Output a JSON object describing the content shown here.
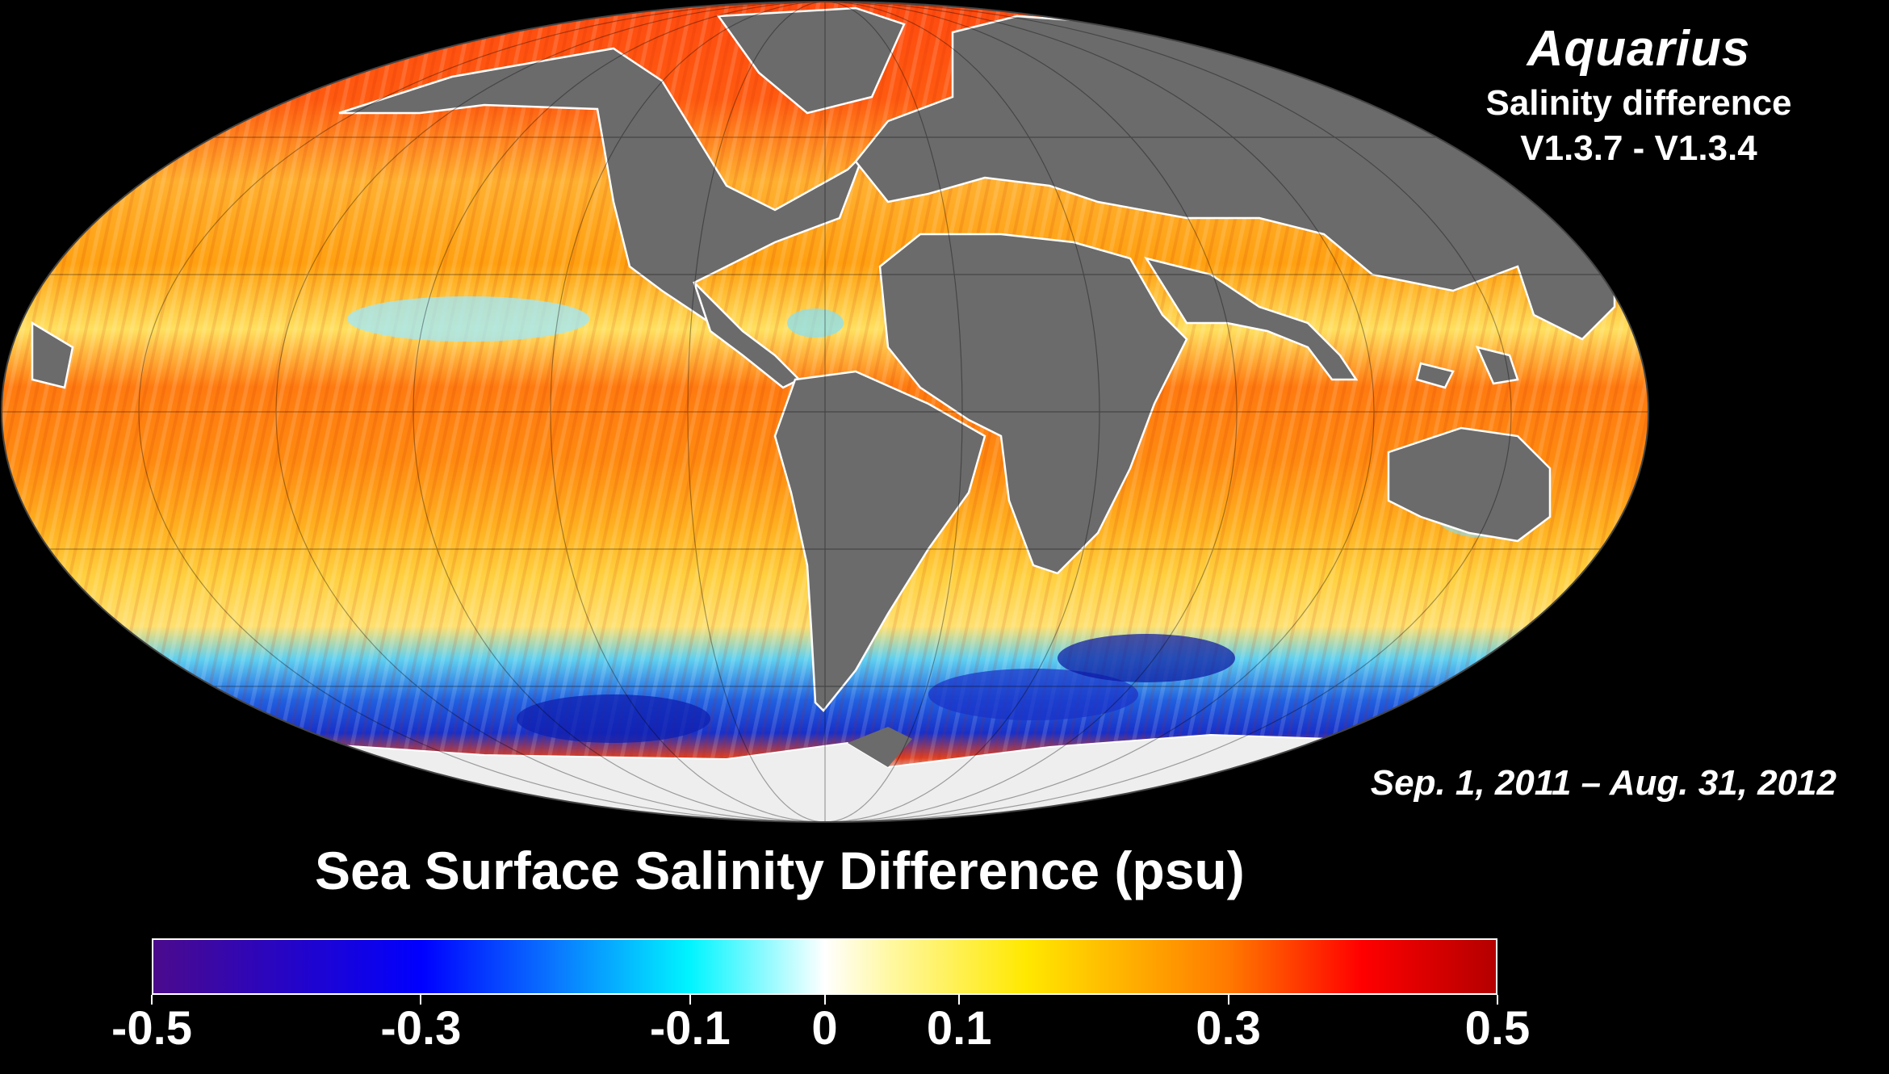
{
  "header": {
    "mission": "Aquarius",
    "subtitle_line1": "Salinity difference",
    "subtitle_line2": "V1.3.7 - V1.3.4"
  },
  "date_range": "Sep. 1, 2011 – Aug. 31, 2012",
  "colorbar": {
    "title": "Sea Surface Salinity Difference (psu)",
    "min": -0.5,
    "max": 0.5,
    "ticks": [
      {
        "value": -0.5,
        "label": "-0.5"
      },
      {
        "value": -0.3,
        "label": "-0.3"
      },
      {
        "value": -0.1,
        "label": "-0.1"
      },
      {
        "value": 0,
        "label": "0"
      },
      {
        "value": 0.1,
        "label": "0.1"
      },
      {
        "value": 0.3,
        "label": "0.3"
      },
      {
        "value": 0.5,
        "label": "0.5"
      }
    ],
    "stops": [
      {
        "value": -0.5,
        "color": "#4b0a8c"
      },
      {
        "value": -0.3,
        "color": "#0000ff"
      },
      {
        "value": -0.2,
        "color": "#0a78ff"
      },
      {
        "value": -0.1,
        "color": "#00f5ff"
      },
      {
        "value": 0,
        "color": "#ffffff"
      },
      {
        "value": 0.05,
        "color": "#fff8a0"
      },
      {
        "value": 0.15,
        "color": "#ffe800"
      },
      {
        "value": 0.3,
        "color": "#ff7a00"
      },
      {
        "value": 0.4,
        "color": "#ff0000"
      },
      {
        "value": 0.5,
        "color": "#b40000"
      }
    ]
  },
  "map": {
    "projection": "Mollweide",
    "land_color": "#6b6b6b",
    "ice_color": "#f0f0f0",
    "background_color": "#000000"
  }
}
